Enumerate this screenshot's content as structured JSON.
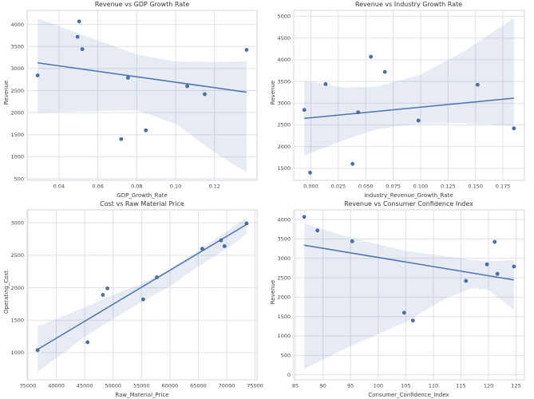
{
  "figure": {
    "background": "#ffffff",
    "accent_color": "#4c72b0",
    "point_edge_color": "#3a5a8a",
    "band_opacity": 0.14,
    "grid_color": "#dfe1ea",
    "spine_color": "#d3d6e0",
    "tick_color": "#45454a"
  },
  "chart_data": [
    {
      "type": "scatter",
      "title": "Revenue vs GDP Growth Rate",
      "xlabel": "GDP_Growth_Rate",
      "ylabel": "Revenue",
      "legend": "none",
      "grid": true,
      "xlim": [
        0.0236,
        0.1419
      ],
      "ylim": [
        465,
        4320
      ],
      "xticks": [
        0.04,
        0.06,
        0.08,
        0.1,
        0.12
      ],
      "xtick_labels": [
        "0.04",
        "0.06",
        "0.08",
        "0.10",
        "0.12"
      ],
      "yticks": [
        500,
        1000,
        1500,
        2000,
        2500,
        3000,
        3500,
        4000
      ],
      "ytick_labels": [
        "500",
        "1000",
        "1500",
        "2000",
        "2500",
        "3000",
        "3500",
        "4000"
      ],
      "points": [
        [
          0.029,
          2845
        ],
        [
          0.0495,
          3720
        ],
        [
          0.0504,
          4070
        ],
        [
          0.052,
          3440
        ],
        [
          0.072,
          1400
        ],
        [
          0.0755,
          2790
        ],
        [
          0.0847,
          1600
        ],
        [
          0.106,
          2600
        ],
        [
          0.115,
          2420
        ],
        [
          0.1365,
          3425
        ]
      ],
      "trend": [
        [
          0.029,
          3130
        ],
        [
          0.1365,
          2465
        ]
      ],
      "band": {
        "x": [
          0.029,
          0.05,
          0.08,
          0.1,
          0.12,
          0.1365
        ],
        "upper": [
          4145,
          3800,
          3320,
          3160,
          3150,
          3165
        ],
        "lower": [
          2000,
          2025,
          2055,
          1750,
          1100,
          640
        ]
      }
    },
    {
      "type": "scatter",
      "title": "Revenue vs Industry Growth Rate",
      "xlabel": "Industry_Revenue_Growth_Rate",
      "ylabel": "Revenue",
      "legend": "none",
      "grid": true,
      "xlim": [
        -0.0156,
        0.1946
      ],
      "ylim": [
        1222,
        5138
      ],
      "xticks": [
        0.0,
        0.025,
        0.05,
        0.075,
        0.1,
        0.125,
        0.15,
        0.175
      ],
      "xtick_labels": [
        "0.000",
        "0.025",
        "0.050",
        "0.075",
        "0.100",
        "0.125",
        "0.150",
        "0.175"
      ],
      "yticks": [
        1500,
        2000,
        2500,
        3000,
        3500,
        4000,
        4500,
        5000
      ],
      "ytick_labels": [
        "1500",
        "2000",
        "2500",
        "3000",
        "3500",
        "4000",
        "4500",
        "5000"
      ],
      "points": [
        [
          -0.006,
          2845
        ],
        [
          -0.0007,
          1400
        ],
        [
          0.0134,
          3440
        ],
        [
          0.0379,
          1600
        ],
        [
          0.0431,
          2790
        ],
        [
          0.0547,
          4070
        ],
        [
          0.0674,
          3720
        ],
        [
          0.098,
          2600
        ],
        [
          0.152,
          3425
        ],
        [
          0.185,
          2420
        ]
      ],
      "trend": [
        [
          -0.006,
          2650
        ],
        [
          0.185,
          3115
        ]
      ],
      "band": {
        "x": [
          -0.006,
          0.03,
          0.06,
          0.1,
          0.14,
          0.185
        ],
        "upper": [
          3520,
          3360,
          3380,
          3660,
          4200,
          4960
        ],
        "lower": [
          1790,
          2150,
          2400,
          2530,
          2540,
          2480
        ]
      }
    },
    {
      "type": "scatter",
      "title": "Cost vs Raw Material Price",
      "xlabel": "Raw_Material_Price",
      "ylabel": "Operating_Cost",
      "legend": "none",
      "grid": true,
      "xlim": [
        34860,
        75340
      ],
      "ylim": [
        581,
        3199
      ],
      "xticks": [
        35000,
        40000,
        45000,
        50000,
        55000,
        60000,
        65000,
        70000,
        75000
      ],
      "xtick_labels": [
        "35000",
        "40000",
        "45000",
        "50000",
        "55000",
        "60000",
        "65000",
        "70000",
        "75000"
      ],
      "yticks": [
        1000,
        1500,
        2000,
        2500,
        3000
      ],
      "ytick_labels": [
        "1000",
        "1500",
        "2000",
        "2500",
        "3000"
      ],
      "points": [
        [
          36700,
          1040
        ],
        [
          45500,
          1160
        ],
        [
          48200,
          1890
        ],
        [
          49000,
          1990
        ],
        [
          55300,
          1820
        ],
        [
          57700,
          2160
        ],
        [
          65700,
          2600
        ],
        [
          69000,
          2730
        ],
        [
          69600,
          2640
        ],
        [
          73500,
          2990
        ]
      ],
      "trend": [
        [
          36700,
          1050
        ],
        [
          73500,
          2975
        ]
      ],
      "band": {
        "x": [
          36700,
          45000,
          50000,
          55000,
          60000,
          65000,
          70000,
          73500
        ],
        "upper": [
          1400,
          1700,
          1890,
          2060,
          2290,
          2570,
          2870,
          3080
        ],
        "lower": [
          700,
          1240,
          1520,
          1780,
          2020,
          2330,
          2600,
          2830
        ]
      }
    },
    {
      "type": "scatter",
      "title": "Revenue vs Consumer Confidence Index",
      "xlabel": "Consumer_Confidence_Index",
      "ylabel": "Revenue",
      "legend": "none",
      "grid": true,
      "xlim": [
        84.7,
        126.5
      ],
      "ylim": [
        -130,
        4250
      ],
      "xticks": [
        85,
        90,
        95,
        100,
        105,
        110,
        115,
        120,
        125
      ],
      "xtick_labels": [
        "85",
        "90",
        "95",
        "100",
        "105",
        "110",
        "115",
        "120",
        "125"
      ],
      "yticks": [
        0,
        500,
        1000,
        1500,
        2000,
        2500,
        3000,
        3500,
        4000
      ],
      "ytick_labels": [
        "0",
        "500",
        "1000",
        "1500",
        "2000",
        "2500",
        "3000",
        "3500",
        "4000"
      ],
      "points": [
        [
          86.6,
          4070
        ],
        [
          89.0,
          3720
        ],
        [
          95.3,
          3440
        ],
        [
          104.7,
          1600
        ],
        [
          106.3,
          1400
        ],
        [
          115.9,
          2420
        ],
        [
          119.7,
          2845
        ],
        [
          121.1,
          3425
        ],
        [
          121.6,
          2600
        ],
        [
          124.6,
          2790
        ]
      ],
      "trend": [
        [
          86.6,
          3340
        ],
        [
          124.6,
          2445
        ]
      ],
      "band": {
        "x": [
          86.6,
          95,
          105,
          112,
          117,
          120,
          124.6
        ],
        "upper": [
          3900,
          3530,
          3190,
          3060,
          2960,
          2930,
          2950
        ],
        "lower": [
          150,
          740,
          1360,
          1950,
          2230,
          2190,
          1670
        ]
      }
    }
  ]
}
